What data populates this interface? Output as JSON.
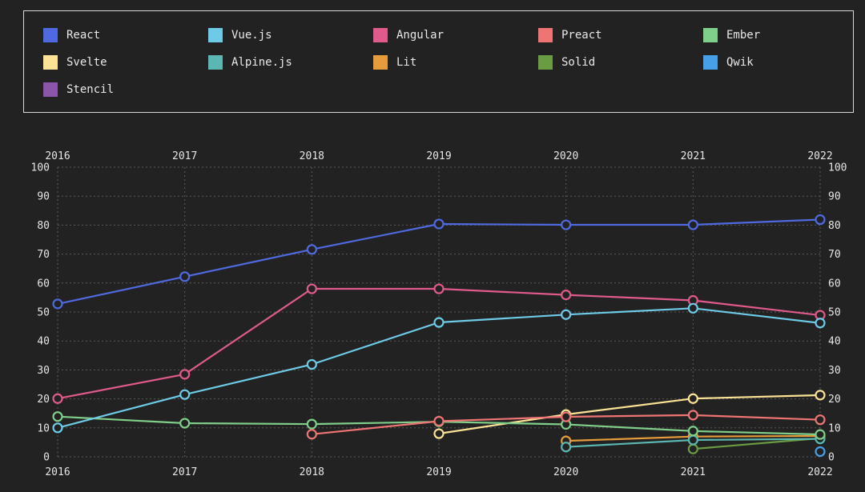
{
  "chart_data": {
    "type": "line",
    "x": [
      "2016",
      "2017",
      "2018",
      "2019",
      "2020",
      "2021",
      "2022"
    ],
    "ylim": [
      0,
      100
    ],
    "yticks": [
      "0",
      "10",
      "20",
      "30",
      "40",
      "50",
      "60",
      "70",
      "80",
      "90",
      "100"
    ],
    "grid": true,
    "legend_position": "top",
    "series": [
      {
        "name": "React",
        "color": "#4f6ae0",
        "values": [
          52.8,
          62.2,
          71.6,
          80.4,
          80.1,
          80.1,
          81.9
        ]
      },
      {
        "name": "Vue.js",
        "color": "#6ecbe8",
        "values": [
          10.0,
          21.5,
          31.9,
          46.4,
          49.1,
          51.3,
          46.2
        ]
      },
      {
        "name": "Angular",
        "color": "#e05a8c",
        "values": [
          20.1,
          28.5,
          58.0,
          58.0,
          55.9,
          54.0,
          48.9
        ]
      },
      {
        "name": "Preact",
        "color": "#ef7474",
        "values": [
          null,
          null,
          7.8,
          12.3,
          13.8,
          14.4,
          12.8
        ]
      },
      {
        "name": "Ember",
        "color": "#7fce8a",
        "values": [
          13.9,
          11.6,
          11.3,
          12.1,
          11.2,
          8.9,
          7.7
        ]
      },
      {
        "name": "Svelte",
        "color": "#fbe295",
        "values": [
          null,
          null,
          null,
          8.0,
          14.6,
          20.1,
          21.3
        ]
      },
      {
        "name": "Alpine.js",
        "color": "#5ab7b1",
        "values": [
          null,
          null,
          null,
          null,
          3.4,
          5.8,
          6.2
        ]
      },
      {
        "name": "Lit",
        "color": "#e79c3c",
        "values": [
          null,
          null,
          null,
          null,
          5.5,
          7.0,
          7.2
        ]
      },
      {
        "name": "Solid",
        "color": "#6a9d43",
        "values": [
          null,
          null,
          null,
          null,
          null,
          2.7,
          6.4
        ]
      },
      {
        "name": "Qwik",
        "color": "#479fe8",
        "values": [
          null,
          null,
          null,
          null,
          null,
          null,
          1.8
        ]
      },
      {
        "name": "Stencil",
        "color": "#8b56a9",
        "values": [
          null,
          null,
          null,
          null,
          null,
          null,
          null
        ]
      }
    ]
  }
}
